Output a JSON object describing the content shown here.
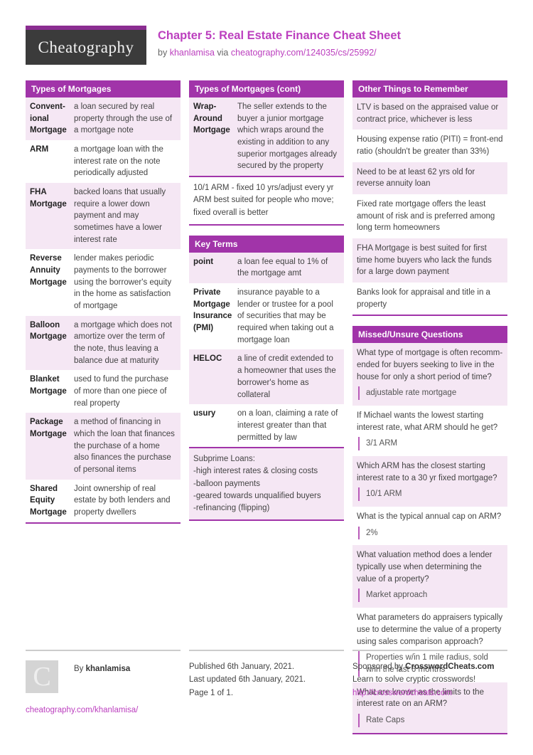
{
  "colors": {
    "accent_header": "#a134a9",
    "logo_bar": "#8b2d91",
    "link": "#bc40bf",
    "row_highlight": "#f5e7f4",
    "logo_background": "#3b3b3b",
    "footer_rule": "#cccccc"
  },
  "header": {
    "logo": "Cheatography",
    "title": "Chapter 5: Real Estate Finance Cheat Sheet",
    "byline_prefix": "by",
    "author": "khanlamisa",
    "via_label": "via",
    "sheet_link": "cheatography.com/124035/cs/25992/"
  },
  "col1": {
    "mortgages": {
      "title": "Types of Mortgages",
      "rows": [
        {
          "term": "Convent-ional Mortgage",
          "def": "a loan secured by real property through the use of a mortgage note"
        },
        {
          "term": "ARM",
          "def": "a mortgage loan with the interest rate on the note periodically adjusted"
        },
        {
          "term": "FHA Mortgage",
          "def": "backed loans that usually require a lower down payment and may sometimes have a lower interest rate"
        },
        {
          "term": "Reverse Annuity Mortgage",
          "def": "lender makes periodic payments to the borrower using the borrower's equity in the home as satisfaction of mortgage"
        },
        {
          "term": "Balloon Mortgage",
          "def": "a mortgage which does not amortize over the term of the note, thus leaving a balance due at maturity"
        },
        {
          "term": "Blanket Mortgage",
          "def": "used to fund the purchase of more than one piece of real property"
        },
        {
          "term": "Package Mortgage",
          "def": "a method of financing in which the loan that finances the purchase of a home also finances the purchase of personal items"
        },
        {
          "term": "Shared Equity Mortgage",
          "def": "Joint ownership of real estate by both lenders and property dwellers"
        }
      ]
    }
  },
  "col2": {
    "cont": {
      "title": "Types of Mortgages (cont)",
      "rows": [
        {
          "term": "Wrap-Around Mortgage",
          "def": "The seller extends to the buyer a junior mortgage which wraps around the existing in addition to any superior mortgages already secured by the property"
        }
      ],
      "notes": [
        "10/1 ARM - fixed 10 yrs/adjust every yr",
        "ARM best suited for people who move; fixed overall is better"
      ]
    },
    "key_terms": {
      "title": "Key Terms",
      "rows": [
        {
          "term": "point",
          "def": "a loan fee equal to 1% of the mortgage amt"
        },
        {
          "term": "Private Mortgage Insurance (PMI)",
          "def": "insurance payable to a lender or trustee for a pool of securities that may be required when taking out a mortgage loan"
        },
        {
          "term": "HELOC",
          "def": "a line of credit extended to a homeowner that uses the borrower's home as collateral"
        },
        {
          "term": "usury",
          "def": "on a loan, claiming a rate of interest greater than that permitted by law"
        }
      ],
      "notes": [
        "Subprime Loans:",
        "-high interest rates & closing costs",
        "-balloon payments",
        "-geared towards unqualified buyers",
        "-refinancing (flipping)"
      ]
    }
  },
  "col3": {
    "other": {
      "title": "Other Things to Remember",
      "items": [
        "LTV is based on the appraised value or contract price, whichever is less",
        "Housing expense ratio (PITI) = front-end ratio (shouldn't be greater than 33%)",
        "Need to be at least 62 yrs old for reverse annuity loan",
        "Fixed rate mortgage offers the least amount of risk and is preferred among long term homeowners",
        "FHA Mortgage is best suited for first time home buyers who lack the funds for a large down payment",
        "Banks look for appraisal and title in a property"
      ]
    },
    "questions": {
      "title": "Missed/Unsure Questions",
      "items": [
        {
          "q": "What type of mortgage is often recomm-ended for buyers seeking to live in the house for only a short period of time?",
          "a": "adjustable rate mortgage"
        },
        {
          "q": "If Michael wants the lowest starting interest rate, what ARM should he get?",
          "a": "3/1 ARM"
        },
        {
          "q": "Which ARM has the closest starting interest rate to a 30 yr fixed mortgage?",
          "a": "10/1 ARM"
        },
        {
          "q": "What is the typical annual cap on ARM?",
          "a": "2%"
        },
        {
          "q": "What valuation method does a lender typically use when determining the value of a property?",
          "a": "Market approach"
        },
        {
          "q": "What parameters do appraisers typically use to determine the value of a property using sales comparison approach?",
          "a": "Properties w/in 1 mile radius, sold w/in the last 6 months"
        },
        {
          "q": "What are known as the limits to the interest rate on an ARM?",
          "a": "Rate Caps"
        }
      ]
    }
  },
  "footer": {
    "avatar_letter": "C",
    "by_label": "By",
    "author": "khanlamisa",
    "profile_link": "cheatography.com/khanlamisa/",
    "published": "Published 6th January, 2021.",
    "updated": "Last updated 6th January, 2021.",
    "page": "Page 1 of 1.",
    "sponsor_prefix": "Sponsored by",
    "sponsor_name": "CrosswordCheats.com",
    "sponsor_tagline": "Learn to solve cryptic crosswords!",
    "sponsor_link": "http://crosswordcheats.com"
  }
}
